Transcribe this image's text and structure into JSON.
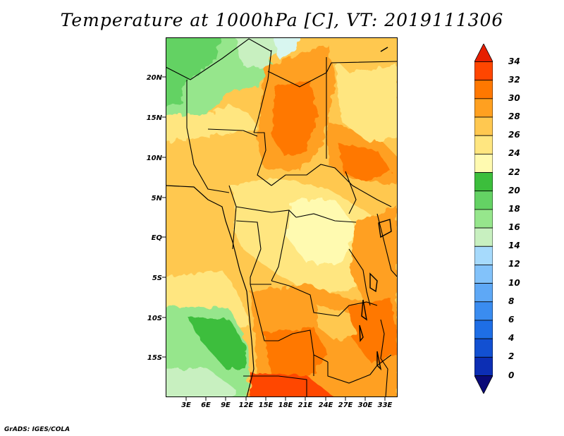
{
  "title": "Temperature at 1000hPa [C], VT: 2019111306",
  "credit": "GrADS: IGES/COLA",
  "lat_labels": [
    "20N",
    "15N",
    "10N",
    "5N",
    "EQ",
    "5S",
    "10S",
    "15S"
  ],
  "lon_labels": [
    "3E",
    "6E",
    "9E",
    "12E",
    "15E",
    "18E",
    "21E",
    "24E",
    "27E",
    "30E",
    "33E"
  ],
  "colorbar": {
    "labels": [
      "0",
      "2",
      "4",
      "6",
      "8",
      "10",
      "12",
      "14",
      "16",
      "18",
      "20",
      "22",
      "24",
      "26",
      "28",
      "30",
      "32",
      "34"
    ],
    "colors": [
      "#0a0a78",
      "#0c2eb4",
      "#1250d2",
      "#1e6ee6",
      "#3a8cf0",
      "#5ea8f6",
      "#82c2fa",
      "#a6dafc",
      "#c8f0c0",
      "#96e68c",
      "#64d264",
      "#3cbe3c",
      "#fffab0",
      "#ffe680",
      "#ffc850",
      "#ffa020",
      "#ff7800",
      "#ff4600",
      "#e61e00"
    ]
  }
}
